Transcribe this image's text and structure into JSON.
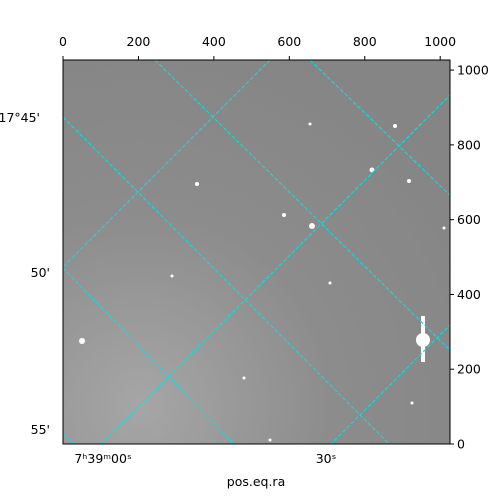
{
  "chart_data": {
    "type": "image",
    "xlabel": "pos.eq.ra",
    "xlim": [
      0,
      1026
    ],
    "ylim": [
      0,
      1027
    ],
    "xticks": [
      0,
      200,
      400,
      600,
      800,
      1000
    ],
    "yticks": [
      0,
      200,
      400,
      600,
      800,
      1000
    ],
    "ra_tick_labels": [
      "7ʰ39ᵐ00ˢ",
      "30ˢ"
    ],
    "dec_tick_labels": [
      "17°45'",
      "50'",
      "55'"
    ],
    "grid_color": "#00e5e5"
  }
}
